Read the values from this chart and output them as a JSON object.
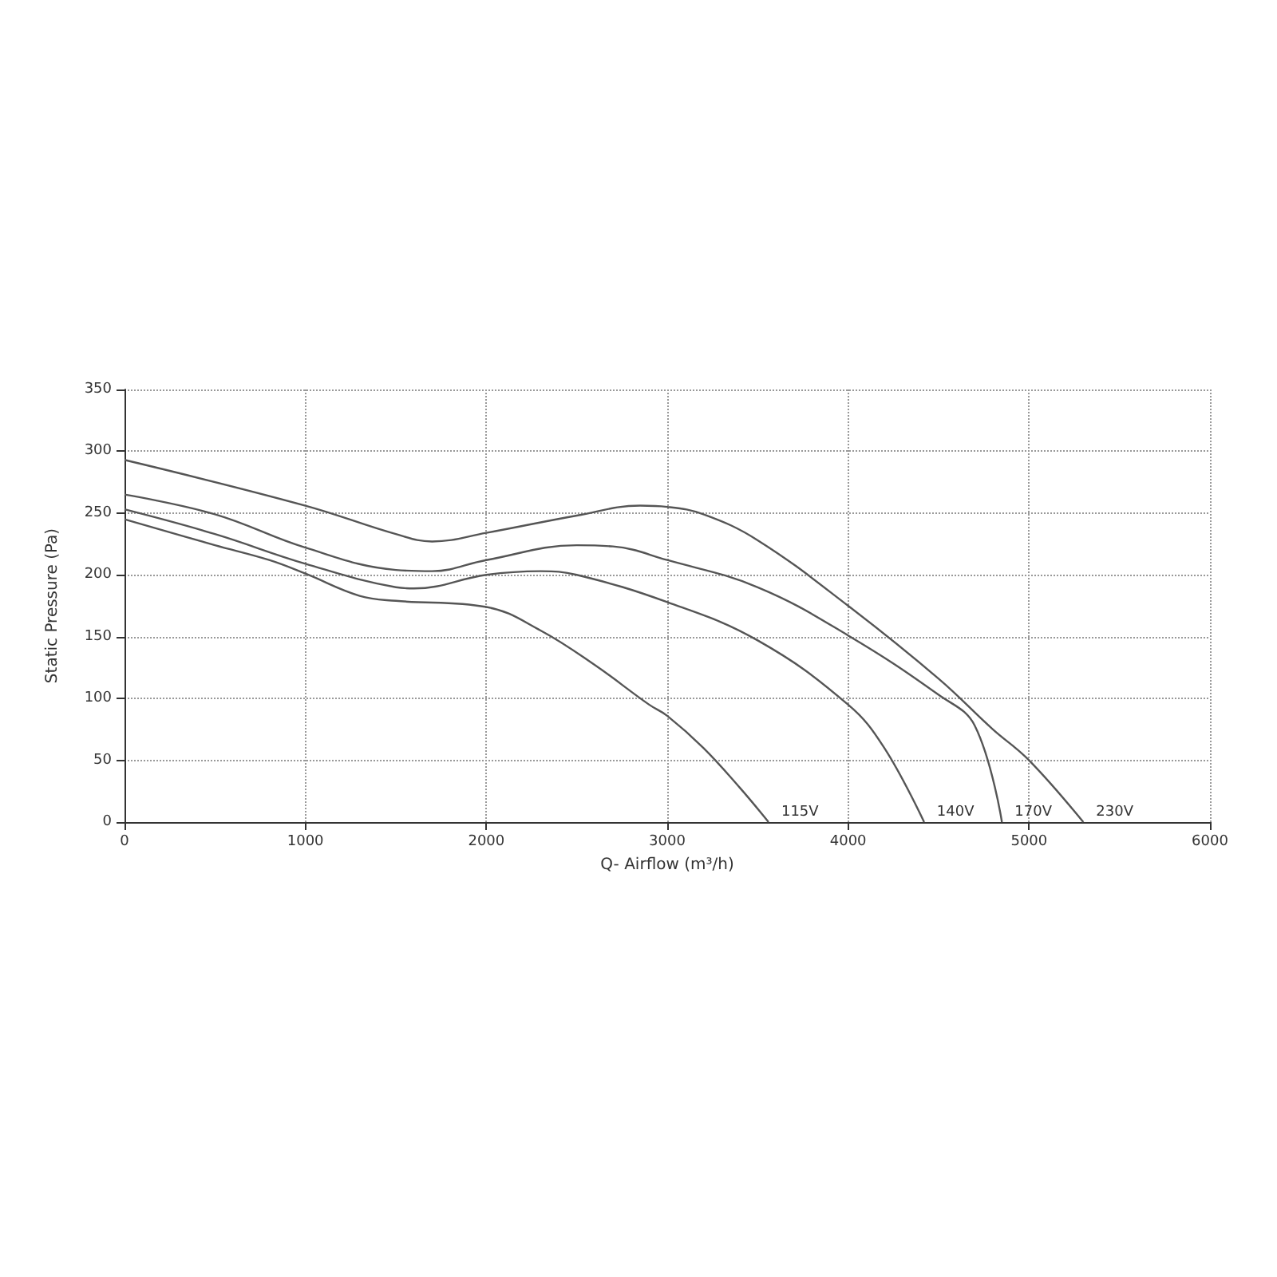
{
  "chart_data": {
    "type": "line",
    "xlabel": "Q- Airflow (m³/h)",
    "ylabel": "Static Pressure (Pa)",
    "xlim": [
      0,
      6000
    ],
    "xticks": [
      0,
      1000,
      2000,
      3000,
      4000,
      5000,
      6000
    ],
    "ylim": [
      0,
      350
    ],
    "yticks": [
      0,
      50,
      100,
      150,
      200,
      250,
      300,
      350
    ],
    "grid": true,
    "legend": false,
    "marker": "none",
    "line_style": "solid",
    "series": [
      {
        "name": "115V",
        "color": "#555555",
        "x": [
          0,
          500,
          800,
          1000,
          1300,
          1500,
          2000,
          2300,
          2600,
          2900,
          3000,
          3200,
          3400,
          3560
        ],
        "values": [
          245,
          224,
          212,
          201,
          183,
          179,
          174,
          155,
          127,
          95,
          86,
          60,
          28,
          0
        ]
      },
      {
        "name": "140V",
        "color": "#555555",
        "x": [
          0,
          500,
          1000,
          1500,
          1600,
          2000,
          2300,
          2500,
          3000,
          3500,
          4000,
          4200,
          4420
        ],
        "values": [
          253,
          233,
          209,
          190,
          189,
          200,
          203,
          200,
          178,
          147,
          95,
          60,
          0
        ]
      },
      {
        "name": "170V",
        "color": "#555555",
        "x": [
          0,
          500,
          1000,
          1500,
          1700,
          2000,
          2500,
          2700,
          3000,
          3500,
          4000,
          4500,
          4700,
          4850
        ],
        "values": [
          265,
          249,
          222,
          204,
          203,
          212,
          224,
          223,
          212,
          190,
          151,
          103,
          78,
          0
        ]
      },
      {
        "name": "230V",
        "color": "#555555",
        "x": [
          0,
          1000,
          1500,
          1700,
          2000,
          2500,
          2850,
          3000,
          3200,
          3500,
          4000,
          4500,
          4800,
          5000,
          5300
        ],
        "values": [
          293,
          256,
          233,
          227,
          234,
          248,
          256,
          255,
          249,
          228,
          175,
          116,
          75,
          50,
          0
        ]
      }
    ]
  }
}
